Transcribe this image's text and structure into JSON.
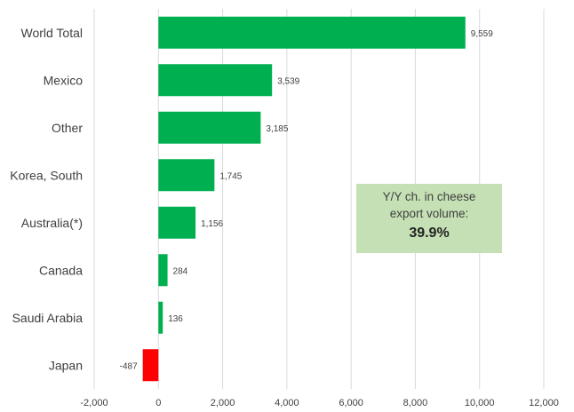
{
  "chart_data": {
    "type": "bar",
    "orientation": "horizontal",
    "categories": [
      "World Total",
      "Mexico",
      "Other",
      "Korea, South",
      "Australia(*)",
      "Canada",
      "Saudi Arabia",
      "Japan"
    ],
    "values": [
      9559,
      3539,
      3185,
      1745,
      1156,
      284,
      136,
      -487
    ],
    "data_labels": [
      "9,559",
      "3,539",
      "3,185",
      "1,745",
      "1,156",
      "284",
      "136",
      "-487"
    ],
    "xlim": [
      -2000,
      12000
    ],
    "xticks": [
      -2000,
      0,
      2000,
      4000,
      6000,
      8000,
      10000,
      12000
    ],
    "xtick_labels": [
      "-2,000",
      "0",
      "2,000",
      "4,000",
      "6,000",
      "8,000",
      "10,000",
      "12,000"
    ],
    "grid": "vertical",
    "colors": {
      "positive": "#00b050",
      "negative": "#ff0000",
      "grid": "#d9d9d9"
    }
  },
  "callout": {
    "title_lines": [
      "Y/Y ch. in cheese",
      "export volume:"
    ],
    "value": "39.9%",
    "background": "#c5e0b4"
  }
}
